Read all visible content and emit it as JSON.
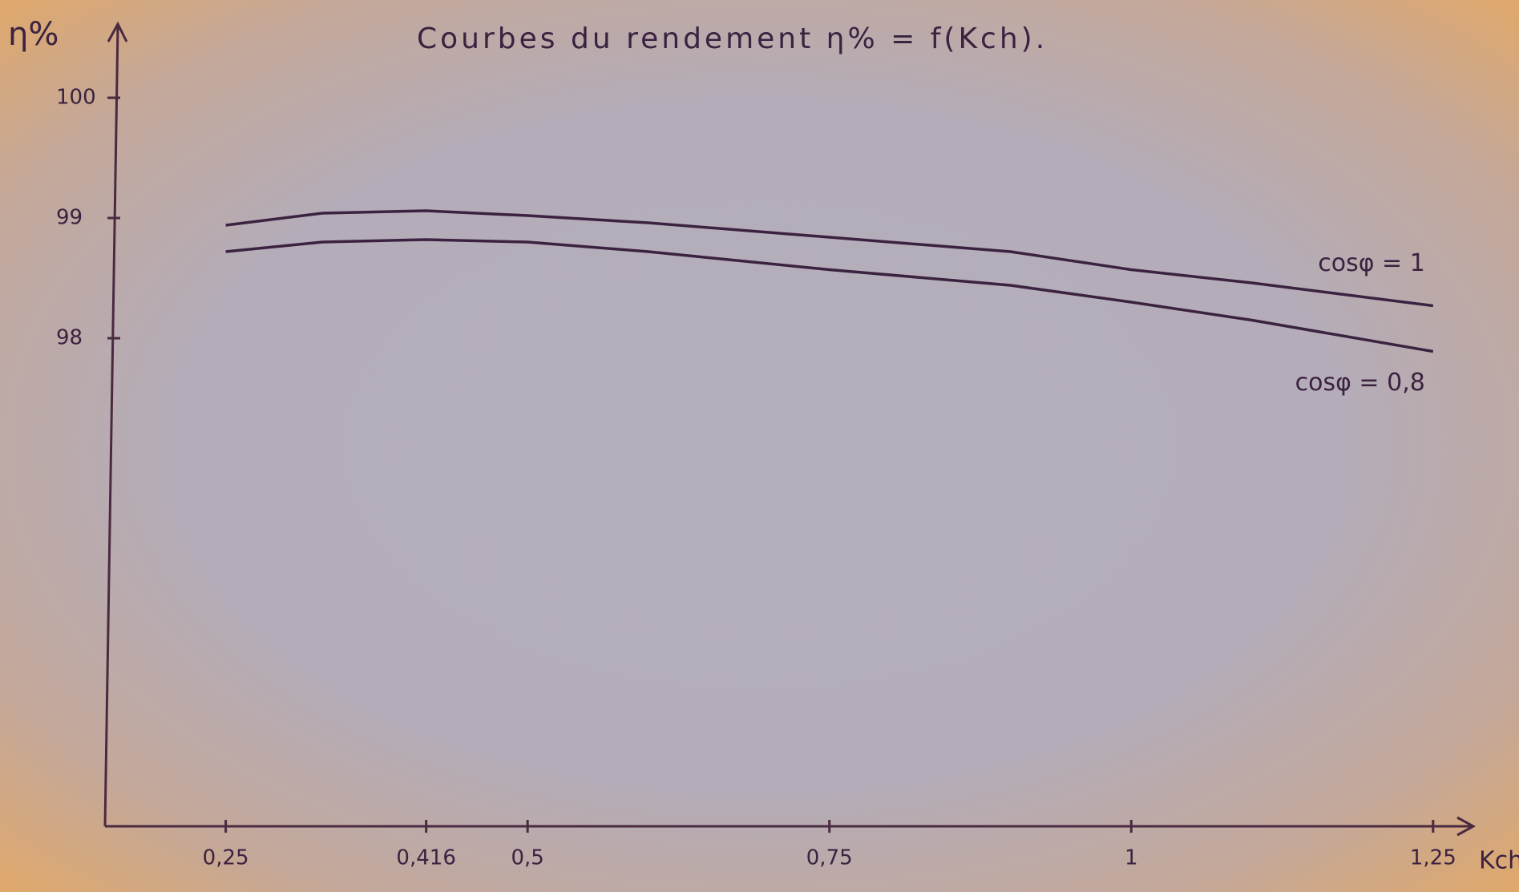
{
  "chart_data": {
    "type": "line",
    "title": "Courbes du rendement η% = f(Kch).",
    "y_label": "η%",
    "x_label": "Kch",
    "x": [
      0.25,
      0.33,
      0.416,
      0.5,
      0.6,
      0.75,
      0.9,
      1,
      1.1,
      1.25
    ],
    "series": [
      {
        "name": "cosφ = 1",
        "color": "#3b2240",
        "values": [
          98.94,
          99.04,
          99.06,
          99.02,
          98.96,
          98.84,
          98.72,
          98.57,
          98.46,
          98.27
        ]
      },
      {
        "name": "cosφ = 0,8",
        "color": "#3b2240",
        "values": [
          98.72,
          98.8,
          98.82,
          98.8,
          98.72,
          98.57,
          98.44,
          98.3,
          98.15,
          97.89
        ]
      }
    ],
    "xlim": [
      0.15,
      1.28
    ],
    "ylim": [
      93.9,
      100.6
    ],
    "xticks": [
      {
        "value": 0.25,
        "label": "0,25"
      },
      {
        "value": 0.416,
        "label": "0,416"
      },
      {
        "value": 0.5,
        "label": "0,5"
      },
      {
        "value": 0.75,
        "label": "0,75"
      },
      1,
      {
        "value": 1.25,
        "label": "1,25"
      }
    ],
    "yticks": [
      98,
      99,
      100
    ],
    "grid": false
  }
}
